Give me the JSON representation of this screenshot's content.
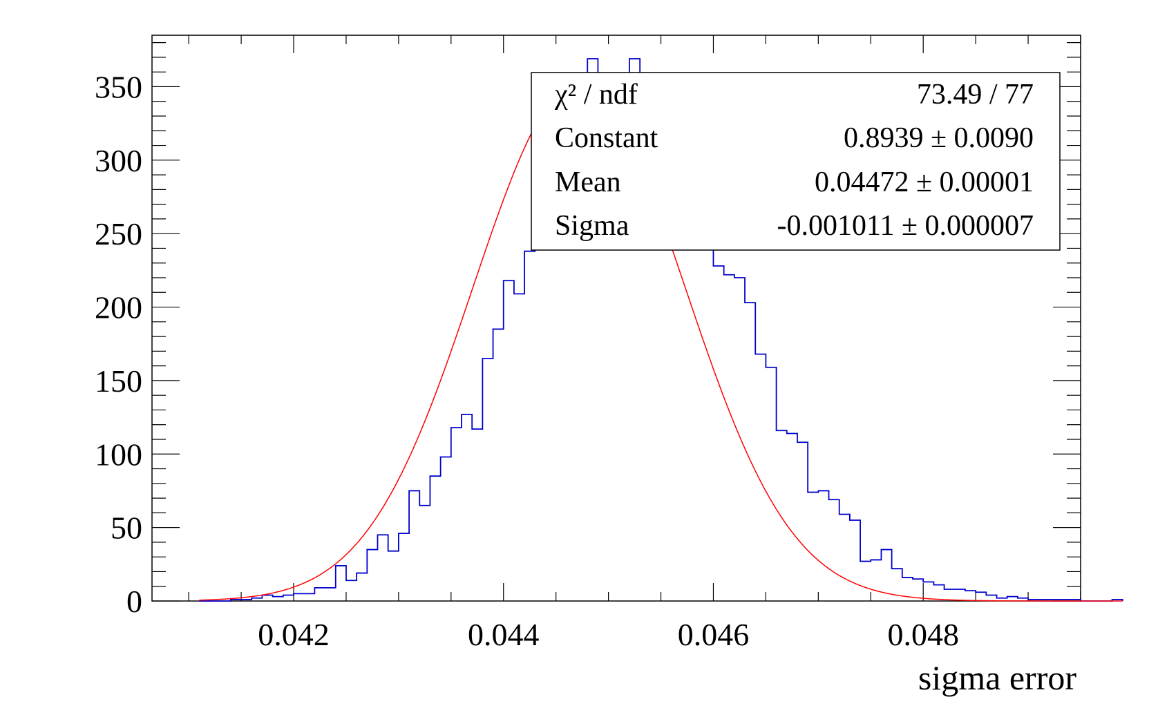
{
  "chart_data": {
    "type": "histogram",
    "title": "",
    "xlabel": "sigma error",
    "ylabel": "",
    "xlim": [
      0.04065,
      0.0495
    ],
    "ylim": [
      0,
      385
    ],
    "x_ticks": [
      "0.042",
      "0.044",
      "0.046",
      "0.048"
    ],
    "y_ticks": [
      "0",
      "50",
      "100",
      "150",
      "200",
      "250",
      "300",
      "350"
    ],
    "x_tick_values": [
      0.042,
      0.044,
      0.046,
      0.048
    ],
    "y_tick_values": [
      0,
      50,
      100,
      150,
      200,
      250,
      300,
      350
    ],
    "bin_start": 0.0411,
    "bin_width": 0.0001,
    "series": [
      {
        "kind": "histogram",
        "color": "#0000cc",
        "values": [
          0,
          0,
          0,
          1,
          1,
          2,
          4,
          3,
          4,
          5,
          5,
          9,
          9,
          24,
          14,
          19,
          35,
          45,
          34,
          46,
          75,
          65,
          85,
          98,
          118,
          127,
          117,
          165,
          185,
          218,
          209,
          238,
          251,
          266,
          264,
          341,
          334,
          369,
          315,
          335,
          315,
          369,
          350,
          335,
          318,
          295,
          300,
          278,
          258,
          228,
          222,
          220,
          203,
          168,
          159,
          116,
          114,
          108,
          74,
          75,
          69,
          59,
          55,
          27,
          28,
          35,
          22,
          16,
          15,
          13,
          11,
          8,
          8,
          7,
          6,
          4,
          2,
          3,
          2,
          1,
          1,
          1,
          1,
          1,
          0,
          0,
          0,
          1
        ]
      },
      {
        "kind": "gaussian-fit",
        "color": "#ff0000",
        "amplitude": 352,
        "mean": 0.04472,
        "sigma": 0.001011
      }
    ],
    "legend_position": "top-right",
    "grid": false
  },
  "stats_box": {
    "rows": [
      {
        "label": "χ² / ndf",
        "value": "73.49 / 77"
      },
      {
        "label": "Constant",
        "value": "0.8939 ± 0.0090"
      },
      {
        "label": "Mean",
        "value": "0.04472 ± 0.00001"
      },
      {
        "label": "Sigma",
        "value": "-0.001011 ± 0.000007"
      }
    ]
  }
}
